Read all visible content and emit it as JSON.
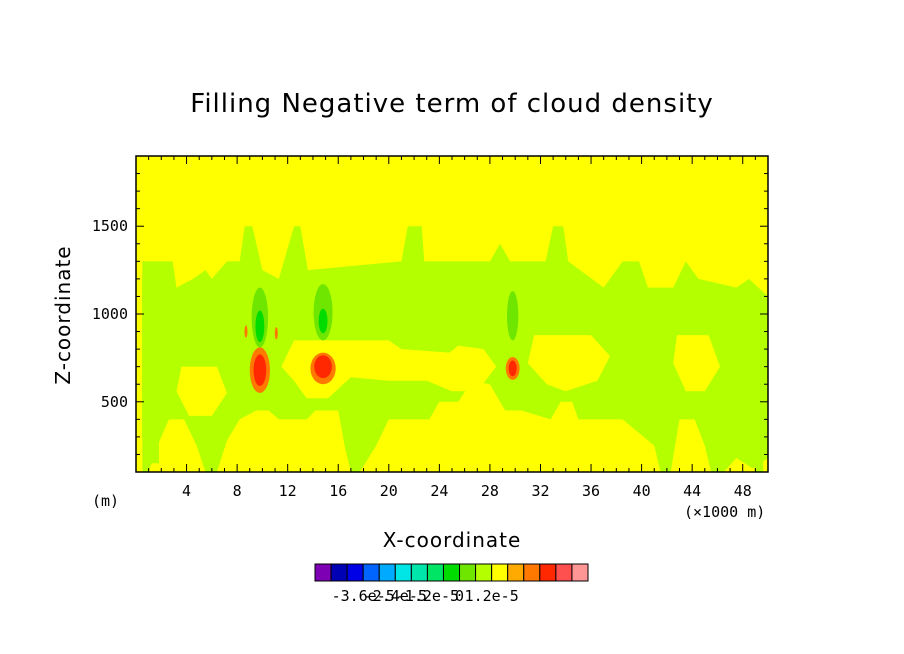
{
  "chart_data": {
    "type": "heatmap",
    "title": "Filling Negative term of cloud density",
    "xlabel": "X-coordinate",
    "ylabel": "Z-coordinate",
    "x_unit_left": "(m)",
    "x_unit_right": "(×1000 m)",
    "xlim": [
      0,
      50
    ],
    "ylim": [
      100,
      1900
    ],
    "x_ticks": [
      "4",
      "8",
      "12",
      "16",
      "20",
      "24",
      "28",
      "32",
      "36",
      "40",
      "44",
      "48"
    ],
    "y_ticks": [
      "500",
      "1000",
      "1500"
    ],
    "colorbar": {
      "colors": [
        "#7d00b4",
        "#0000b4",
        "#0000e6",
        "#0064ff",
        "#00aaff",
        "#00e6e6",
        "#00e6aa",
        "#00e664",
        "#00dc00",
        "#6ee600",
        "#b4ff00",
        "#ffff00",
        "#ffaa00",
        "#ff7800",
        "#ff2800",
        "#ff5050",
        "#ff9696"
      ],
      "labels": [
        "-3.6e-5",
        "-2.4e-5",
        "-1.2e-5",
        "0",
        "1.2e-5"
      ]
    },
    "background_value_color": "#ffff00",
    "features": [
      {
        "level": "#b4ff00",
        "x": [
          0.5,
          50
        ],
        "y": [
          100,
          1300
        ],
        "note": "broad weak negative band"
      },
      {
        "level": "#6ee600",
        "x_center": 9.8,
        "y_center": 950,
        "amplitude": "strong negative"
      },
      {
        "level": "#6ee600",
        "x_center": 14.8,
        "y_center": 1000,
        "amplitude": "strong negative"
      },
      {
        "level": "#6ee600",
        "x_center": 29.8,
        "y_center": 980,
        "amplitude": "strong negative"
      },
      {
        "level": "#ff2800",
        "x_center": 9.8,
        "y_center": 680,
        "amplitude": "positive"
      },
      {
        "level": "#ff2800",
        "x_center": 14.8,
        "y_center": 700,
        "amplitude": "positive"
      },
      {
        "level": "#ff2800",
        "x_center": 29.8,
        "y_center": 690,
        "amplitude": "positive"
      }
    ]
  }
}
